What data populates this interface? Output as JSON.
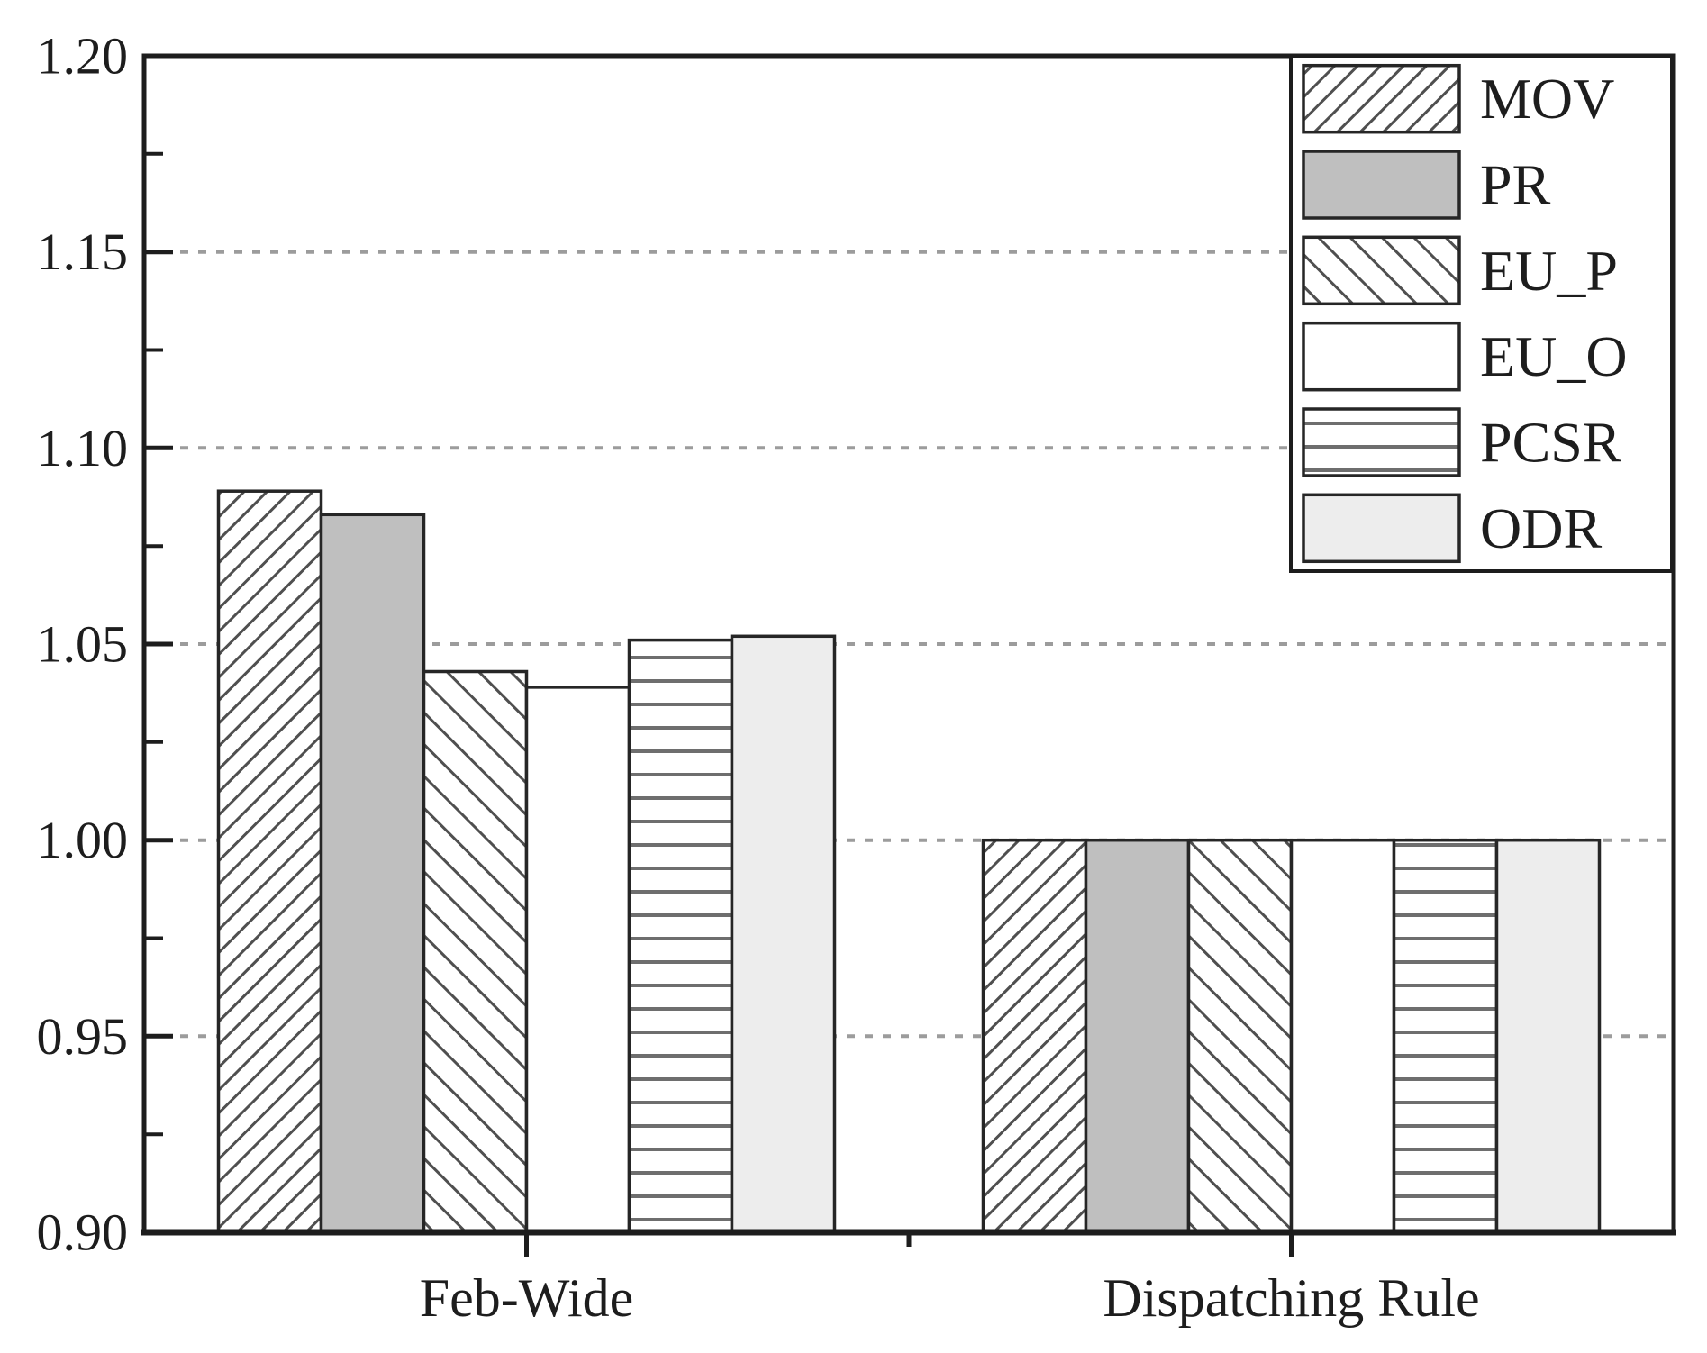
{
  "chart_data": {
    "type": "bar",
    "title": "",
    "xlabel": "",
    "ylabel": "",
    "categories": [
      "Feb-Wide",
      "Dispatching Rule"
    ],
    "series": [
      {
        "name": "MOV",
        "pattern": "diagonal-forward",
        "values": [
          1.089,
          1.0
        ]
      },
      {
        "name": "PR",
        "pattern": "solid",
        "color": "#bfbfbf",
        "values": [
          1.083,
          1.0
        ]
      },
      {
        "name": "EU_P",
        "pattern": "diagonal-backward",
        "values": [
          1.043,
          1.0
        ]
      },
      {
        "name": "EU_O",
        "pattern": "solid",
        "color": "#ffffff",
        "values": [
          1.039,
          1.0
        ]
      },
      {
        "name": "PCSR",
        "pattern": "horizontal-lines",
        "values": [
          1.051,
          1.0
        ]
      },
      {
        "name": "ODR",
        "pattern": "solid",
        "color": "#ededed",
        "values": [
          1.052,
          1.0
        ]
      }
    ],
    "ylim": [
      0.9,
      1.2
    ],
    "ytick_step": 0.05,
    "ytick_minor_step": 0.025,
    "ytick_labels": [
      "0.90",
      "0.95",
      "1.00",
      "1.05",
      "1.10",
      "1.15",
      "1.20"
    ],
    "grid": {
      "horizontal": "dashed",
      "at": "major-ticks",
      "on": true
    },
    "legend": {
      "position": "top-right",
      "entries": [
        "MOV",
        "PR",
        "EU_P",
        "EU_O",
        "PCSR",
        "ODR"
      ]
    },
    "colors": {
      "axis": "#1d1d1d",
      "grid": "#9c9c9c",
      "hatch_line": "#4f4f4f",
      "pcsr_line": "#6e6e6e",
      "bar_border": "#262626",
      "background": "#ffffff"
    }
  }
}
